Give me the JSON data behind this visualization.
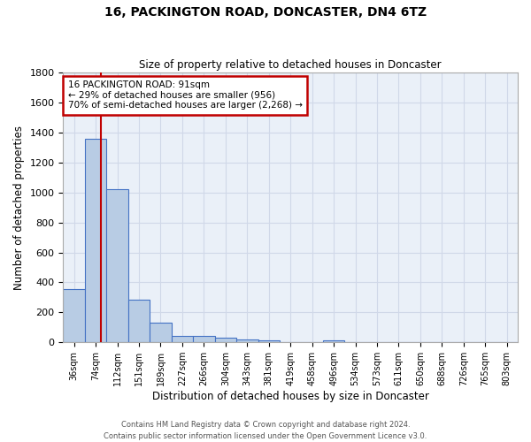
{
  "title1": "16, PACKINGTON ROAD, DONCASTER, DN4 6TZ",
  "title2": "Size of property relative to detached houses in Doncaster",
  "xlabel": "Distribution of detached houses by size in Doncaster",
  "ylabel": "Number of detached properties",
  "categories": [
    "36sqm",
    "74sqm",
    "112sqm",
    "151sqm",
    "189sqm",
    "227sqm",
    "266sqm",
    "304sqm",
    "343sqm",
    "381sqm",
    "419sqm",
    "458sqm",
    "496sqm",
    "534sqm",
    "573sqm",
    "611sqm",
    "650sqm",
    "688sqm",
    "726sqm",
    "765sqm",
    "803sqm"
  ],
  "values": [
    355,
    1360,
    1020,
    285,
    130,
    42,
    42,
    28,
    18,
    14,
    0,
    0,
    14,
    0,
    0,
    0,
    0,
    0,
    0,
    0,
    0
  ],
  "bar_color": "#b8cce4",
  "bar_edge_color": "#4472c4",
  "property_line_x": 1.25,
  "property_line_color": "#c00000",
  "annotation_text": "16 PACKINGTON ROAD: 91sqm\n← 29% of detached houses are smaller (956)\n70% of semi-detached houses are larger (2,268) →",
  "annotation_box_color": "white",
  "annotation_box_edge_color": "#c00000",
  "ylim": [
    0,
    1800
  ],
  "yticks": [
    0,
    200,
    400,
    600,
    800,
    1000,
    1200,
    1400,
    1600,
    1800
  ],
  "grid_color": "#d0d8e8",
  "background_color": "#eaf0f8",
  "footer_line1": "Contains HM Land Registry data © Crown copyright and database right 2024.",
  "footer_line2": "Contains public sector information licensed under the Open Government Licence v3.0."
}
